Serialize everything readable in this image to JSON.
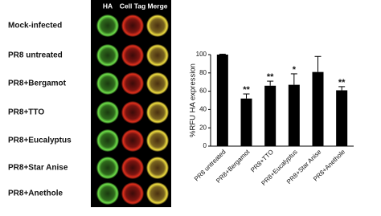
{
  "panel": {
    "columns": [
      "HA",
      "Cell Tag",
      "Merge"
    ],
    "rows": [
      "Mock-infected",
      "PR8 untreated",
      "PR8+Bergamot",
      "PR8+TTO",
      "PR8+Eucalyptus",
      "PR8+Star Anise",
      "PR8+Anethole"
    ]
  },
  "chart_data": {
    "type": "bar",
    "y_label": "%RFU HA expression",
    "categories": [
      "PR8 untreated",
      "PR8+Bergamot",
      "PR8+TTO",
      "PR8+Eucalyptus",
      "PR8+Star Anise",
      "PR8+Anethole"
    ],
    "values": [
      100,
      52,
      66,
      67,
      81,
      61
    ],
    "errors": [
      0.5,
      5,
      5,
      12,
      17,
      4
    ],
    "stars": [
      null,
      "**",
      "**",
      "*",
      null,
      "**"
    ],
    "color": "#000000",
    "ylim": [
      0,
      100
    ],
    "yticks": [
      0,
      20,
      40,
      60,
      80,
      100
    ]
  }
}
